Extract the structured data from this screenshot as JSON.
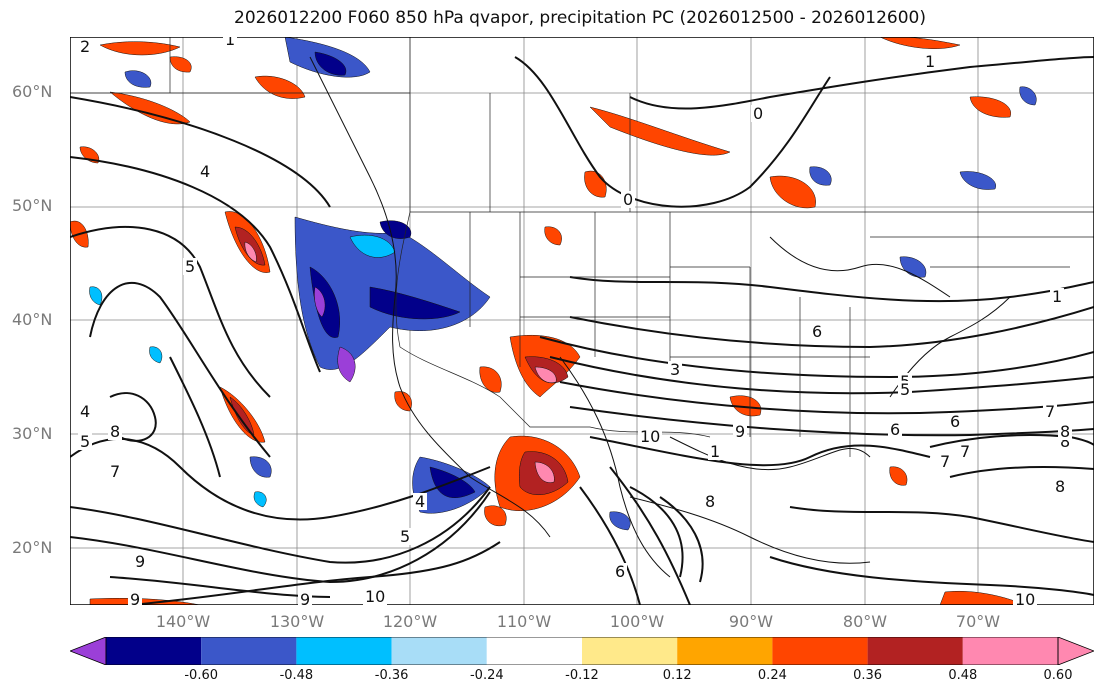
{
  "title": "2026012200 F060 850 hPa qvapor, precipitation PC (2026012500 - 2026012600)",
  "lat_labels": [
    "60°N",
    "50°N",
    "40°N",
    "30°N",
    "20°N"
  ],
  "lon_labels": [
    "140°W",
    "130°W",
    "120°W",
    "110°W",
    "100°W",
    "90°W",
    "80°W",
    "70°W"
  ],
  "contour_labels": [
    "2",
    "1",
    "0",
    "1",
    "0",
    "1",
    "4",
    "5",
    "6",
    "6",
    "1",
    "4",
    "5",
    "5",
    "7",
    "9",
    "8",
    "7",
    "4",
    "5",
    "6",
    "7",
    "8",
    "3",
    "5",
    "6",
    "7",
    "8",
    "10",
    "9",
    "10",
    "8",
    "8",
    "9",
    "9",
    "10"
  ],
  "colorbar": {
    "labels": [
      "-0.60",
      "-0.48",
      "-0.36",
      "-0.24",
      "-0.12",
      "0.12",
      "0.24",
      "0.36",
      "0.48",
      "0.60"
    ],
    "colors": [
      "#9b3fd8",
      "#02008a",
      "#3b57c9",
      "#00bfff",
      "#a8ddf7",
      "#ffffff",
      "#ffe98a",
      "#ffa500",
      "#ff4500",
      "#b22222",
      "#ff88b0",
      "#ff88b0"
    ]
  },
  "colors": {
    "neg_strong": "#02008a",
    "neg_mid": "#3b57c9",
    "neg_light": "#00bfff",
    "pos_light": "#ffa500",
    "pos_mid": "#ff4500",
    "pos_strong": "#b22222",
    "pos_max": "#ff88b0",
    "neg_max": "#9b3fd8"
  }
}
